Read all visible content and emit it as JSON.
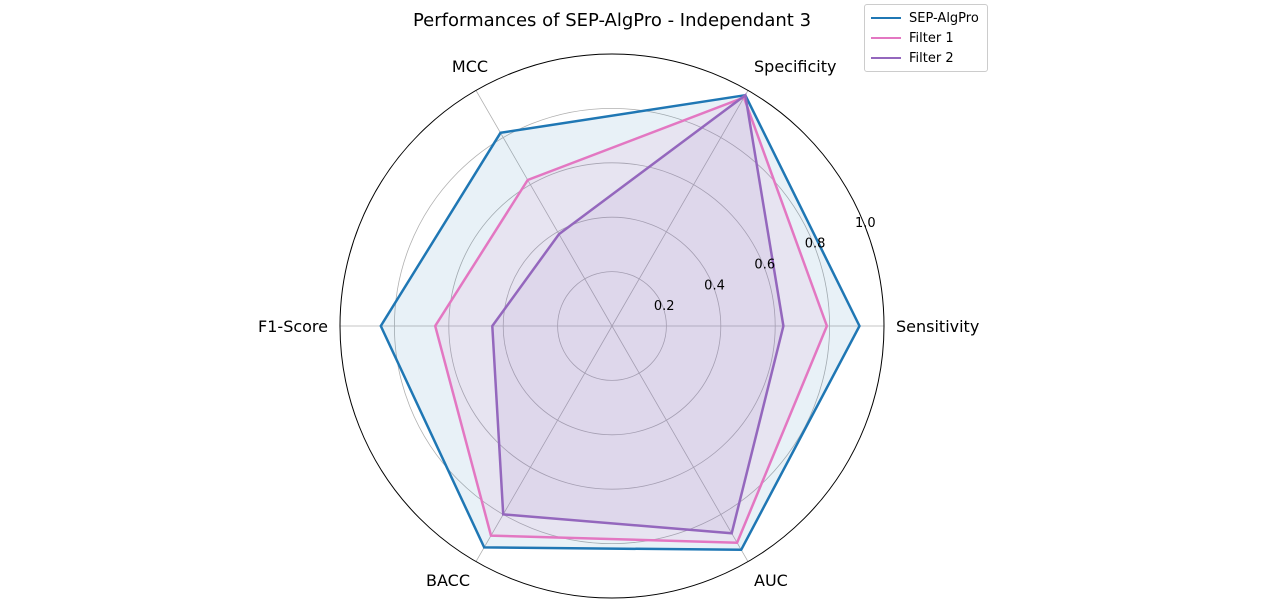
{
  "chart_data": {
    "type": "radar",
    "title": "Performances of SEP-AlgPro - Independant 3",
    "axes": [
      "Sensitivity",
      "Specificity",
      "MCC",
      "F1-Score",
      "BACC",
      "AUC"
    ],
    "rlim": [
      0,
      1.0
    ],
    "r_ticks": [
      "0.2",
      "0.4",
      "0.6",
      "0.8",
      "1.0"
    ],
    "r_tick_values": [
      0.2,
      0.4,
      0.6,
      0.8,
      1.0
    ],
    "grid": true,
    "legend_position": "top-right",
    "series": [
      {
        "name": "SEP-AlgPro",
        "color": "#1f77b4",
        "values": [
          0.91,
          0.98,
          0.82,
          0.85,
          0.94,
          0.95
        ],
        "fill": true
      },
      {
        "name": "Filter 1",
        "color": "#e377c2",
        "values": [
          0.79,
          0.97,
          0.62,
          0.65,
          0.89,
          0.92
        ],
        "fill": true
      },
      {
        "name": "Filter 2",
        "color": "#9467bd",
        "values": [
          0.63,
          0.98,
          0.39,
          0.44,
          0.8,
          0.88
        ],
        "fill": true
      }
    ]
  }
}
